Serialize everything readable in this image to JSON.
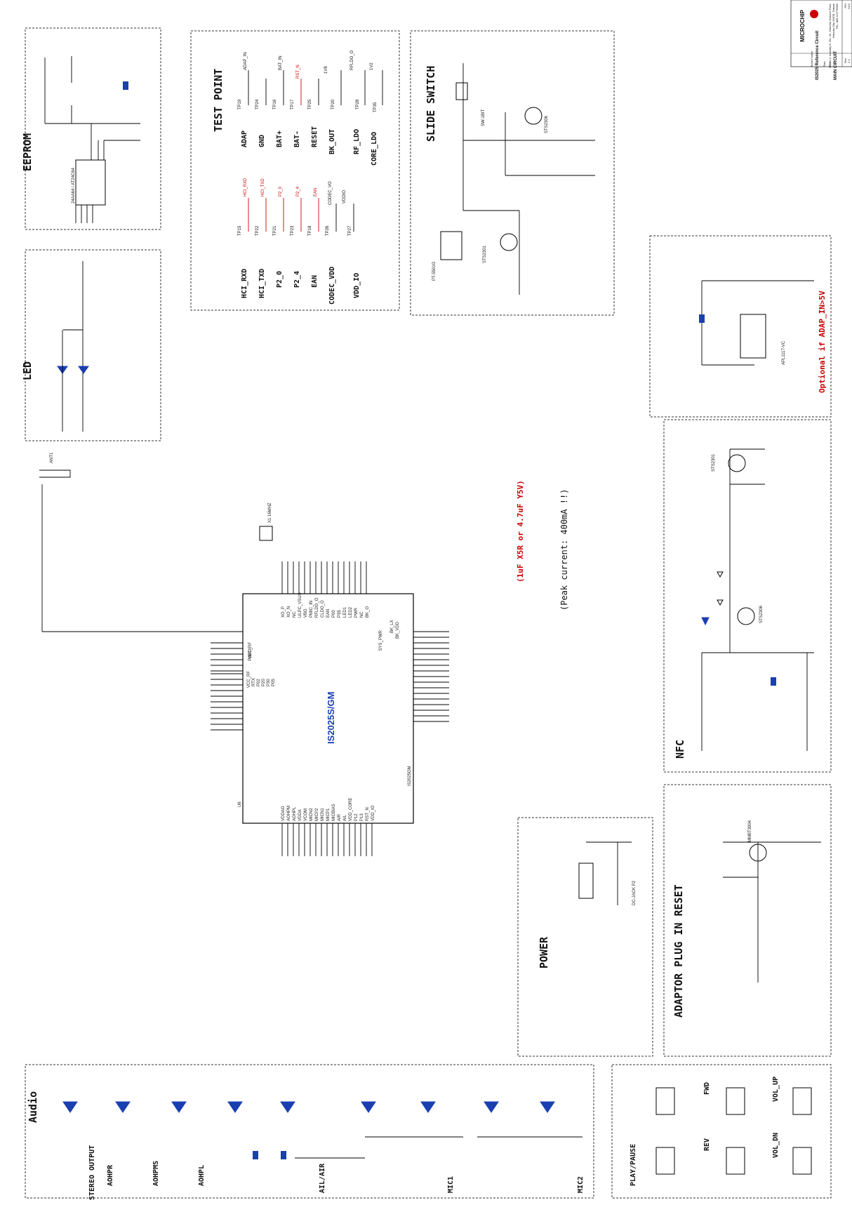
{
  "title_block": {
    "company": "MICROCHIP",
    "address": [
      "9F, No.5, Industry E. Rd. VII, Hsinchu Science Park,",
      "Hsinchu City 30078, Taiwan",
      "TEL: 886-3-5778385"
    ],
    "pn_label": "P/N",
    "pn_value": "XXX",
    "board_label": "Board Name",
    "board_name": "IS2025 Reference Circuit",
    "size_label": "Size",
    "title_label": "Title",
    "title": "MAIN CIRCUIT",
    "rev_label": "Rev",
    "rev": "2.4"
  },
  "sections": {
    "eeprom": "EEPROM",
    "test_point": "TEST POINT",
    "slide_switch": "SLIDE SWITCH",
    "led": "LED",
    "nfc": "NFC",
    "adaptor_reset": "ADAPTOR PLUG IN RESET",
    "power": "POWER",
    "audio": "Audio"
  },
  "chip": {
    "name": "IS2025S/GM",
    "ref": "U6",
    "part": "IS2025GM"
  },
  "notes": {
    "cap_note": "(1uF X5R or 4.7uF Y5V)",
    "peak": "(Peak current: 400mA !!)",
    "optional": "Optional if ADAP_IN>5V"
  },
  "test_points": [
    {
      "label": "ADAP",
      "tp": "TP19",
      "net": "ADAP_IN"
    },
    {
      "label": "GND",
      "tp": "TP24",
      "net": "BAT_IN"
    },
    {
      "label": "BAT+",
      "tp": "TP16",
      "net": "BAT_IN"
    },
    {
      "label": "BAT-",
      "tp": "TP17",
      "net": ""
    },
    {
      "label": "RESET",
      "tp": "TP25",
      "net": "RST_N"
    },
    {
      "label": "BK_OUT",
      "tp": "TP20",
      "net": "1V8"
    },
    {
      "label": "RF_LDO",
      "tp": "TP28",
      "net": "RFLDO_O"
    },
    {
      "label": "CORE_LDO",
      "tp": "TP35",
      "net": "1V2"
    }
  ],
  "test_points2": [
    {
      "label": "HCI_RXD",
      "tp": "TP15",
      "net": "HCI_RXD"
    },
    {
      "label": "HCI_TXD",
      "tp": "TP22",
      "net": "HCI_TXD"
    },
    {
      "label": "P2_0",
      "tp": "TP21",
      "net": "P2_0"
    },
    {
      "label": "P2_4",
      "tp": "TP23",
      "net": "P2_4"
    },
    {
      "label": "EAN",
      "tp": "TP18",
      "net": "EAN"
    },
    {
      "label": "CODEC_VDD",
      "tp": "TP26",
      "net": "CODEC_VO"
    },
    {
      "label": "VDD_IO",
      "tp": "TP27",
      "net": "VDDIO"
    }
  ],
  "audio_labels": {
    "stereo": "STEREO OUTPUT",
    "aohpr": "AOHPR",
    "aohpms": "AOHPMS",
    "aohpl": "AOHPL",
    "ail_air": "AIL/AIR",
    "mic1": "MIC1",
    "mic2": "MIC2"
  },
  "buttons": {
    "play": "PLAY/PAUSE",
    "rev": "REV",
    "fwd": "FWD",
    "vol_dn": "VOL_DN",
    "vol_up": "VOL_UP"
  },
  "left_pins": [
    "VCC_RF",
    "RTX",
    "P02",
    "P20",
    "P30",
    "P05",
    "VDD_IO",
    "HPDOZ_CDA",
    "HPDP2_CDA",
    "AVDD_CDA",
    "VBP_CDA",
    "HPON_CDA",
    "HPOP_CDA",
    "PVDD_CDA",
    "AOHPR"
  ],
  "right_pins": [
    "BK_LX",
    "BK_VDD",
    "SYS_PWR",
    "SAR_VDD",
    "AMB_DET",
    "BAT_IN",
    "ADAP_IN",
    "LDO31_VIN",
    "LDO31_VO",
    "CODEC_VO",
    "TEST_EN",
    "HCI_TXD",
    "HCI_RXD",
    "P15",
    "P04",
    "P24",
    "P01"
  ],
  "top_pins": [
    "XO_P",
    "XO_N",
    "NC",
    "ULPC_VSUS",
    "VBG",
    "PMIC_IN",
    "RFLDO_O",
    "CLDO_O",
    "EAN",
    "P00",
    "P35",
    "LED1",
    "LED2",
    "PWR",
    "NC",
    "BK_O"
  ],
  "bottom_pins": [
    "VDDAO",
    "AOHPM",
    "AOHPL",
    "VDDA",
    "VCOM",
    "MICN2",
    "MICP2",
    "MICN1",
    "MICP1",
    "MICBIAS",
    "AIR",
    "AIL",
    "VDD_CORE",
    "P12",
    "P13",
    "RST_N",
    "VDD_IO"
  ],
  "parts": {
    "eeprom_ic": "24AA64 / AT24C64",
    "u1": "APL1117-VC",
    "x1": "X1 16MHZ",
    "ant": "ANT1",
    "sw10": "SW-1BIT",
    "q6": "STS2306",
    "q14": "STS2301",
    "sw3": "PT-5501G",
    "q9": "STS2301",
    "q7": "STS2306",
    "q3": "MMBT3904",
    "p2": "DC-JACK P2"
  }
}
